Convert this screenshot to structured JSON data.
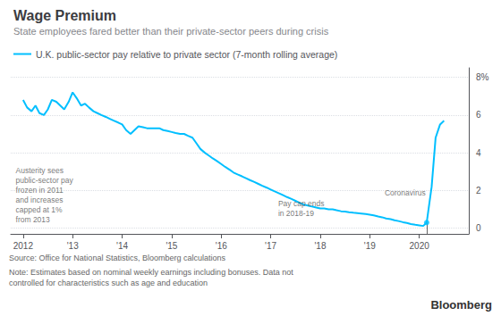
{
  "chart_data": {
    "type": "line",
    "title": "Wage Premium",
    "subtitle": "State employees fared better than their private-sector peers during crisis",
    "x": [
      2012.0,
      2012.08,
      2012.17,
      2012.25,
      2012.33,
      2012.42,
      2012.5,
      2012.58,
      2012.67,
      2012.75,
      2012.83,
      2012.92,
      2013.0,
      2013.08,
      2013.17,
      2013.25,
      2013.33,
      2013.42,
      2013.5,
      2013.58,
      2013.67,
      2013.75,
      2013.83,
      2013.92,
      2014.0,
      2014.08,
      2014.17,
      2014.25,
      2014.33,
      2014.42,
      2014.5,
      2014.58,
      2014.67,
      2014.75,
      2014.83,
      2014.92,
      2015.0,
      2015.08,
      2015.17,
      2015.25,
      2015.33,
      2015.42,
      2015.5,
      2015.58,
      2015.67,
      2015.75,
      2015.83,
      2015.92,
      2016.0,
      2016.08,
      2016.17,
      2016.25,
      2016.33,
      2016.42,
      2016.5,
      2016.58,
      2016.67,
      2016.75,
      2016.83,
      2016.92,
      2017.0,
      2017.08,
      2017.17,
      2017.25,
      2017.33,
      2017.42,
      2017.5,
      2017.58,
      2017.67,
      2017.75,
      2017.83,
      2017.92,
      2018.0,
      2018.08,
      2018.17,
      2018.25,
      2018.33,
      2018.42,
      2018.5,
      2018.58,
      2018.67,
      2018.75,
      2018.83,
      2018.92,
      2019.0,
      2019.08,
      2019.17,
      2019.25,
      2019.33,
      2019.42,
      2019.5,
      2019.58,
      2019.67,
      2019.75,
      2019.83,
      2019.92,
      2020.0,
      2020.08,
      2020.15,
      2020.25,
      2020.33,
      2020.42,
      2020.5
    ],
    "series": [
      {
        "name": "U.K. public-sector pay relative to private sector (7-month rolling average)",
        "color": "#00BFFF",
        "values": [
          6.8,
          6.4,
          6.2,
          6.5,
          6.1,
          6.0,
          6.3,
          6.8,
          6.7,
          6.5,
          6.3,
          6.7,
          7.2,
          6.9,
          6.5,
          6.6,
          6.4,
          6.2,
          6.1,
          6.0,
          5.9,
          5.8,
          5.7,
          5.6,
          5.5,
          5.2,
          5.0,
          5.2,
          5.4,
          5.35,
          5.3,
          5.3,
          5.3,
          5.3,
          5.2,
          5.15,
          5.1,
          5.05,
          5.0,
          5.0,
          4.9,
          4.8,
          4.5,
          4.2,
          4.0,
          3.85,
          3.7,
          3.55,
          3.4,
          3.25,
          3.1,
          2.95,
          2.85,
          2.75,
          2.65,
          2.55,
          2.45,
          2.35,
          2.25,
          2.15,
          2.05,
          1.95,
          1.85,
          1.75,
          1.65,
          1.55,
          1.45,
          1.35,
          1.25,
          1.2,
          1.15,
          1.1,
          1.05,
          1.05,
          1.0,
          1.0,
          0.95,
          0.9,
          0.88,
          0.85,
          0.82,
          0.8,
          0.78,
          0.75,
          0.72,
          0.68,
          0.62,
          0.58,
          0.52,
          0.48,
          0.42,
          0.38,
          0.32,
          0.28,
          0.22,
          0.18,
          0.15,
          0.12,
          0.3,
          2.2,
          4.8,
          5.5,
          5.7
        ]
      }
    ],
    "xlim": [
      2011.75,
      2021.0
    ],
    "xticks": [
      2012,
      {
        "value": 2013,
        "label": "'13"
      },
      {
        "value": 2014,
        "label": "'14"
      },
      {
        "value": 2015,
        "label": "'15"
      },
      {
        "value": 2016,
        "label": "'16"
      },
      {
        "value": 2017,
        "label": "'17"
      },
      {
        "value": 2018,
        "label": "'18"
      },
      {
        "value": 2019,
        "label": "'19"
      },
      2020
    ],
    "ylim": [
      -0.3,
      8.5
    ],
    "yticks": [
      0,
      2,
      4,
      6,
      {
        "value": 8,
        "label": "8%"
      }
    ],
    "grid": true,
    "highlight_point": {
      "x": 2020.15,
      "y": 0.3
    },
    "annotations": [
      {
        "text": "Austerity sees\npublic-sector pay\nfrozen in 2011\nand increases\ncapped at 1%\nfrom 2013",
        "x": 2011.85,
        "y": 3.3
      },
      {
        "text": "Pay cap ends\nin 2018-19",
        "x": 2017.15,
        "y": 0.55
      },
      {
        "text": "Coronavirus",
        "x": 2019.3,
        "y": 1.6
      }
    ],
    "source": "Source: Office for National Statistics, Bloomberg calculations",
    "note": "Note: Estimates based on nominal weekly earnings including bonuses. Data not\ncontrolled for characteristics such as age and education",
    "credit": "Bloomberg"
  }
}
